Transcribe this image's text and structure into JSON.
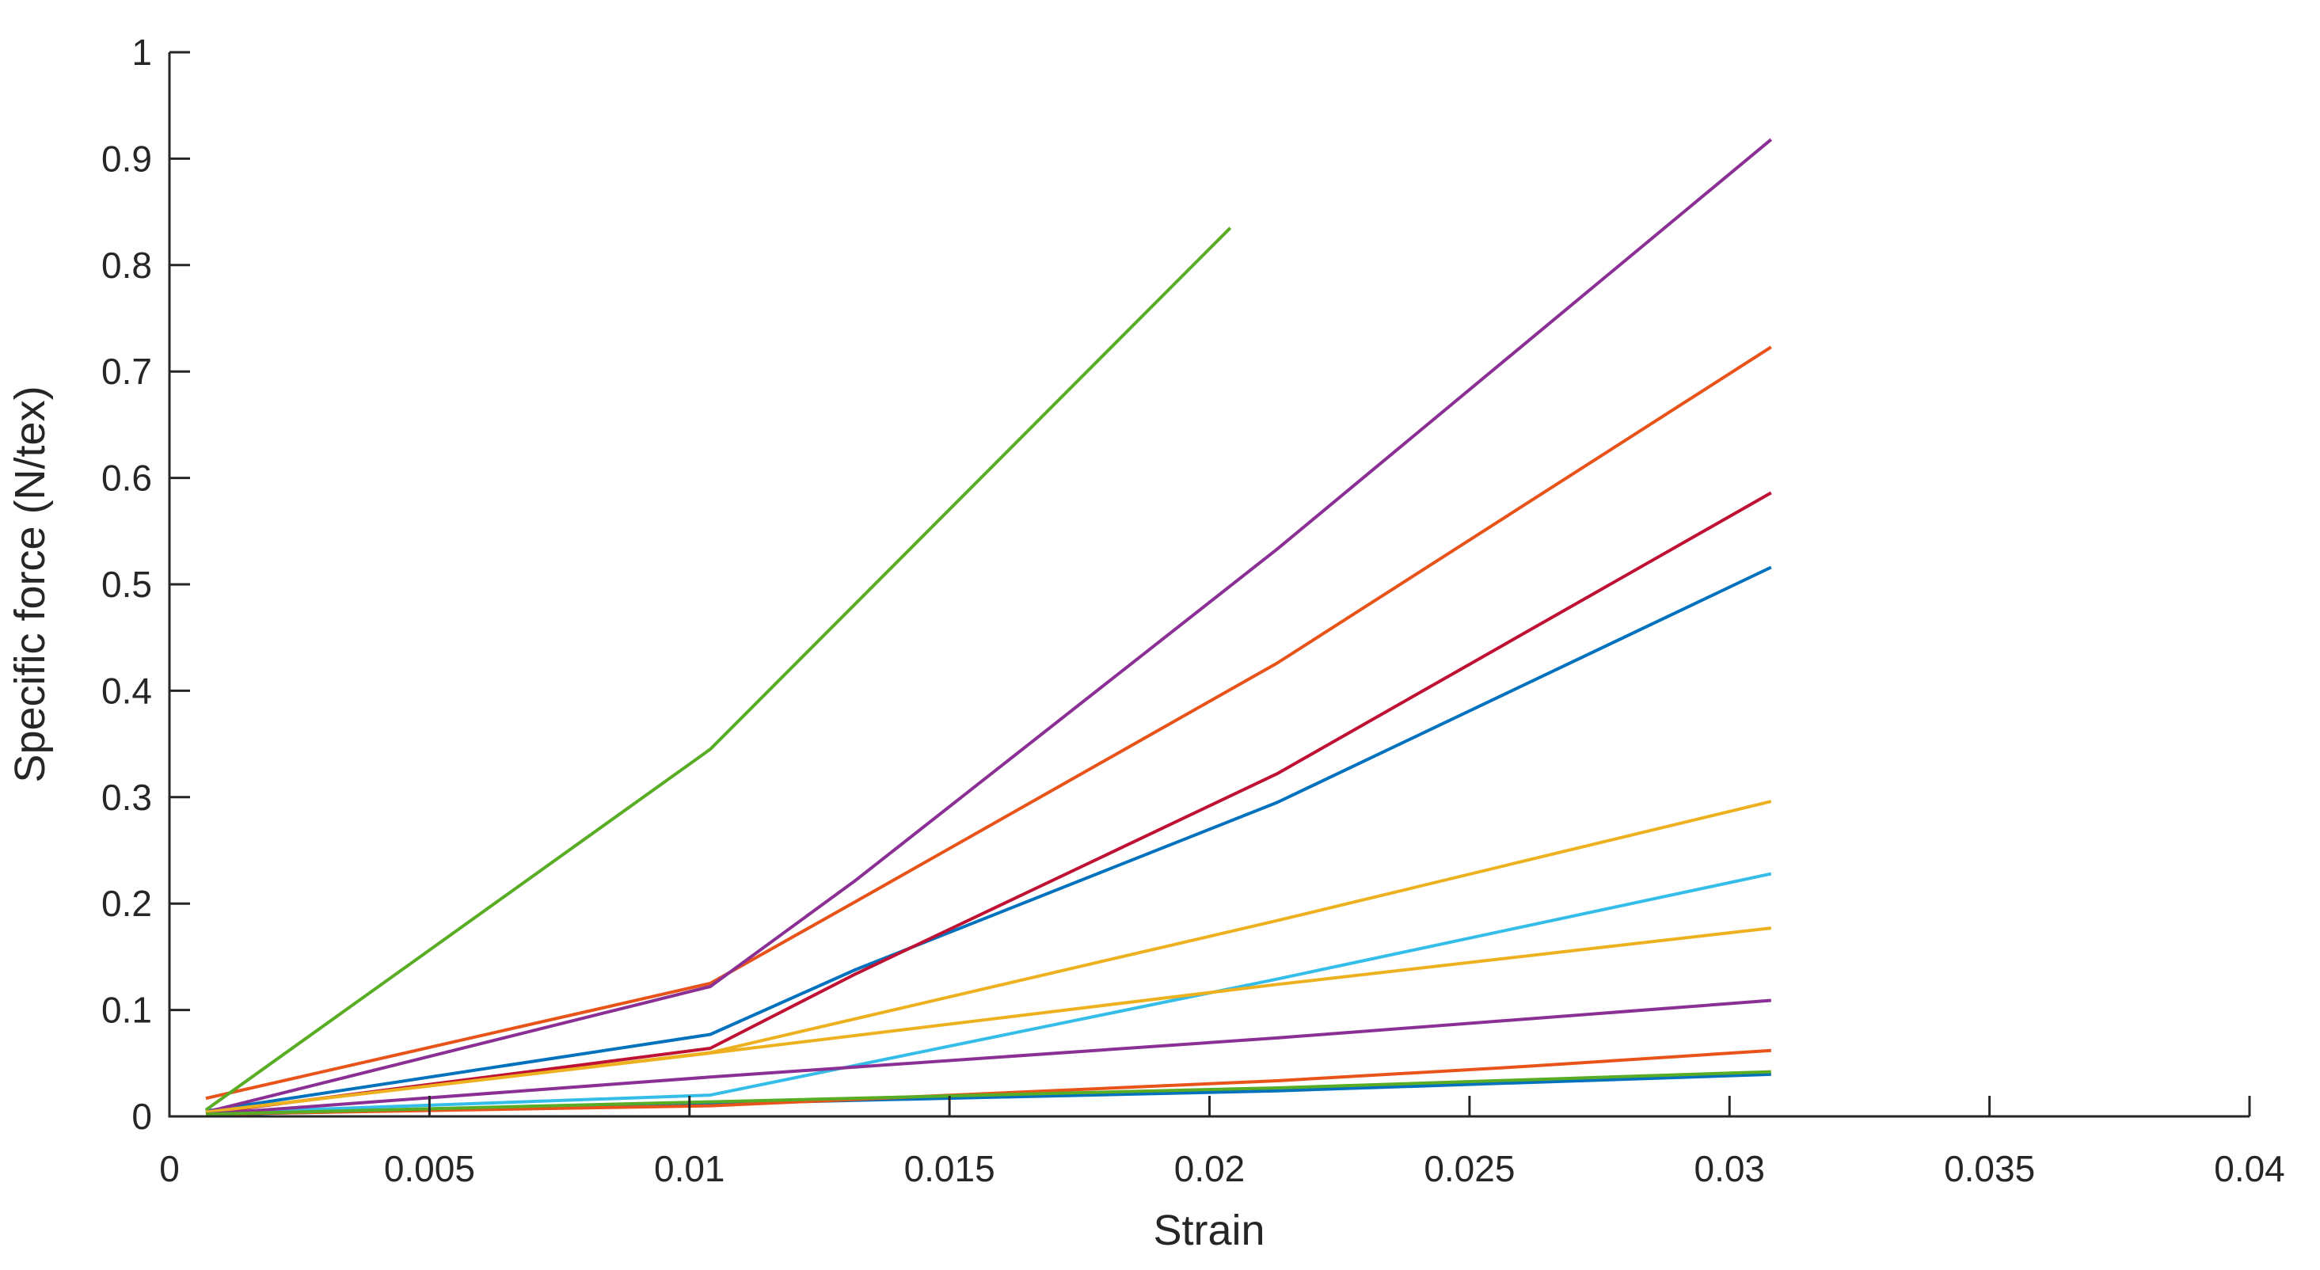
{
  "figure": {
    "background": "#ffffff",
    "axis_color": "#262626",
    "text_color": "#262626"
  },
  "chart_data": {
    "type": "line",
    "title": "",
    "xlabel": "Strain",
    "ylabel": "Specific force (N/tex)",
    "xlim": [
      0,
      0.04
    ],
    "ylim": [
      0,
      1
    ],
    "grid": false,
    "legend": "none",
    "xticks": [
      0,
      0.005,
      0.01,
      0.015,
      0.02,
      0.025,
      0.03,
      0.035,
      0.04
    ],
    "xtick_labels": [
      "0",
      "0.005",
      "0.01",
      "0.015",
      "0.02",
      "0.025",
      "0.03",
      "0.035",
      "0.04"
    ],
    "yticks": [
      0,
      0.1,
      0.2,
      0.3,
      0.4,
      0.5,
      0.6,
      0.7,
      0.8,
      0.9,
      1
    ],
    "ytick_labels": [
      "0",
      "0.1",
      "0.2",
      "0.3",
      "0.4",
      "0.5",
      "0.6",
      "0.7",
      "0.8",
      "0.9",
      "1"
    ],
    "series": [
      {
        "name": "line-1-blue",
        "color": "#0072BD",
        "points": [
          [
            0.0007,
            0.005
          ],
          [
            0.0104,
            0.077
          ],
          [
            0.0132,
            0.138
          ],
          [
            0.0213,
            0.295
          ],
          [
            0.0308,
            0.516
          ]
        ]
      },
      {
        "name": "line-2-orange",
        "color": "#E8531A",
        "points": [
          [
            0.0007,
            0.017
          ],
          [
            0.0104,
            0.125
          ],
          [
            0.0132,
            0.202
          ],
          [
            0.0213,
            0.426
          ],
          [
            0.0308,
            0.723
          ]
        ]
      },
      {
        "name": "line-3-gold",
        "color": "#EDB120",
        "points": [
          [
            0.0007,
            0.004
          ],
          [
            0.0104,
            0.06
          ],
          [
            0.0213,
            0.184
          ],
          [
            0.0308,
            0.296
          ]
        ]
      },
      {
        "name": "line-4-purple",
        "color": "#8A2F93",
        "points": [
          [
            0.0007,
            0.004
          ],
          [
            0.0104,
            0.122
          ],
          [
            0.0132,
            0.222
          ],
          [
            0.0213,
            0.533
          ],
          [
            0.0308,
            0.918
          ]
        ]
      },
      {
        "name": "line-5-green",
        "color": "#58AD25",
        "points": [
          [
            0.0007,
            0.006
          ],
          [
            0.0104,
            0.345
          ],
          [
            0.0204,
            0.835
          ]
        ]
      },
      {
        "name": "line-6-cyan",
        "color": "#33BDE8",
        "points": [
          [
            0.0007,
            0.003
          ],
          [
            0.0104,
            0.02
          ],
          [
            0.0213,
            0.129
          ],
          [
            0.0261,
            0.179
          ],
          [
            0.0308,
            0.228
          ]
        ]
      },
      {
        "name": "line-7-darkred",
        "color": "#BE1133",
        "points": [
          [
            0.0007,
            0.003
          ],
          [
            0.0104,
            0.064
          ],
          [
            0.0132,
            0.134
          ],
          [
            0.0213,
            0.322
          ],
          [
            0.0308,
            0.586
          ]
        ]
      },
      {
        "name": "line-8-blue",
        "color": "#0072BD",
        "points": [
          [
            0.0007,
            0.0015
          ],
          [
            0.0104,
            0.012
          ],
          [
            0.0213,
            0.024
          ],
          [
            0.0308,
            0.0395
          ]
        ]
      },
      {
        "name": "line-9-orange",
        "color": "#E8531A",
        "points": [
          [
            0.0007,
            0.002
          ],
          [
            0.0104,
            0.01
          ],
          [
            0.0213,
            0.0335
          ],
          [
            0.0261,
            0.047
          ],
          [
            0.0308,
            0.062
          ]
        ]
      },
      {
        "name": "line-10-gold",
        "color": "#EDB120",
        "points": [
          [
            0.0007,
            0.004
          ],
          [
            0.0104,
            0.0595
          ],
          [
            0.0213,
            0.124
          ],
          [
            0.0308,
            0.177
          ]
        ]
      },
      {
        "name": "line-11-purple",
        "color": "#8A2F93",
        "points": [
          [
            0.0007,
            0.002
          ],
          [
            0.0104,
            0.037
          ],
          [
            0.0213,
            0.0737
          ],
          [
            0.0308,
            0.109
          ]
        ]
      },
      {
        "name": "line-12-green",
        "color": "#58AD25",
        "points": [
          [
            0.0007,
            0.002
          ],
          [
            0.0104,
            0.0137
          ],
          [
            0.0213,
            0.0268
          ],
          [
            0.0308,
            0.042
          ]
        ]
      }
    ]
  }
}
